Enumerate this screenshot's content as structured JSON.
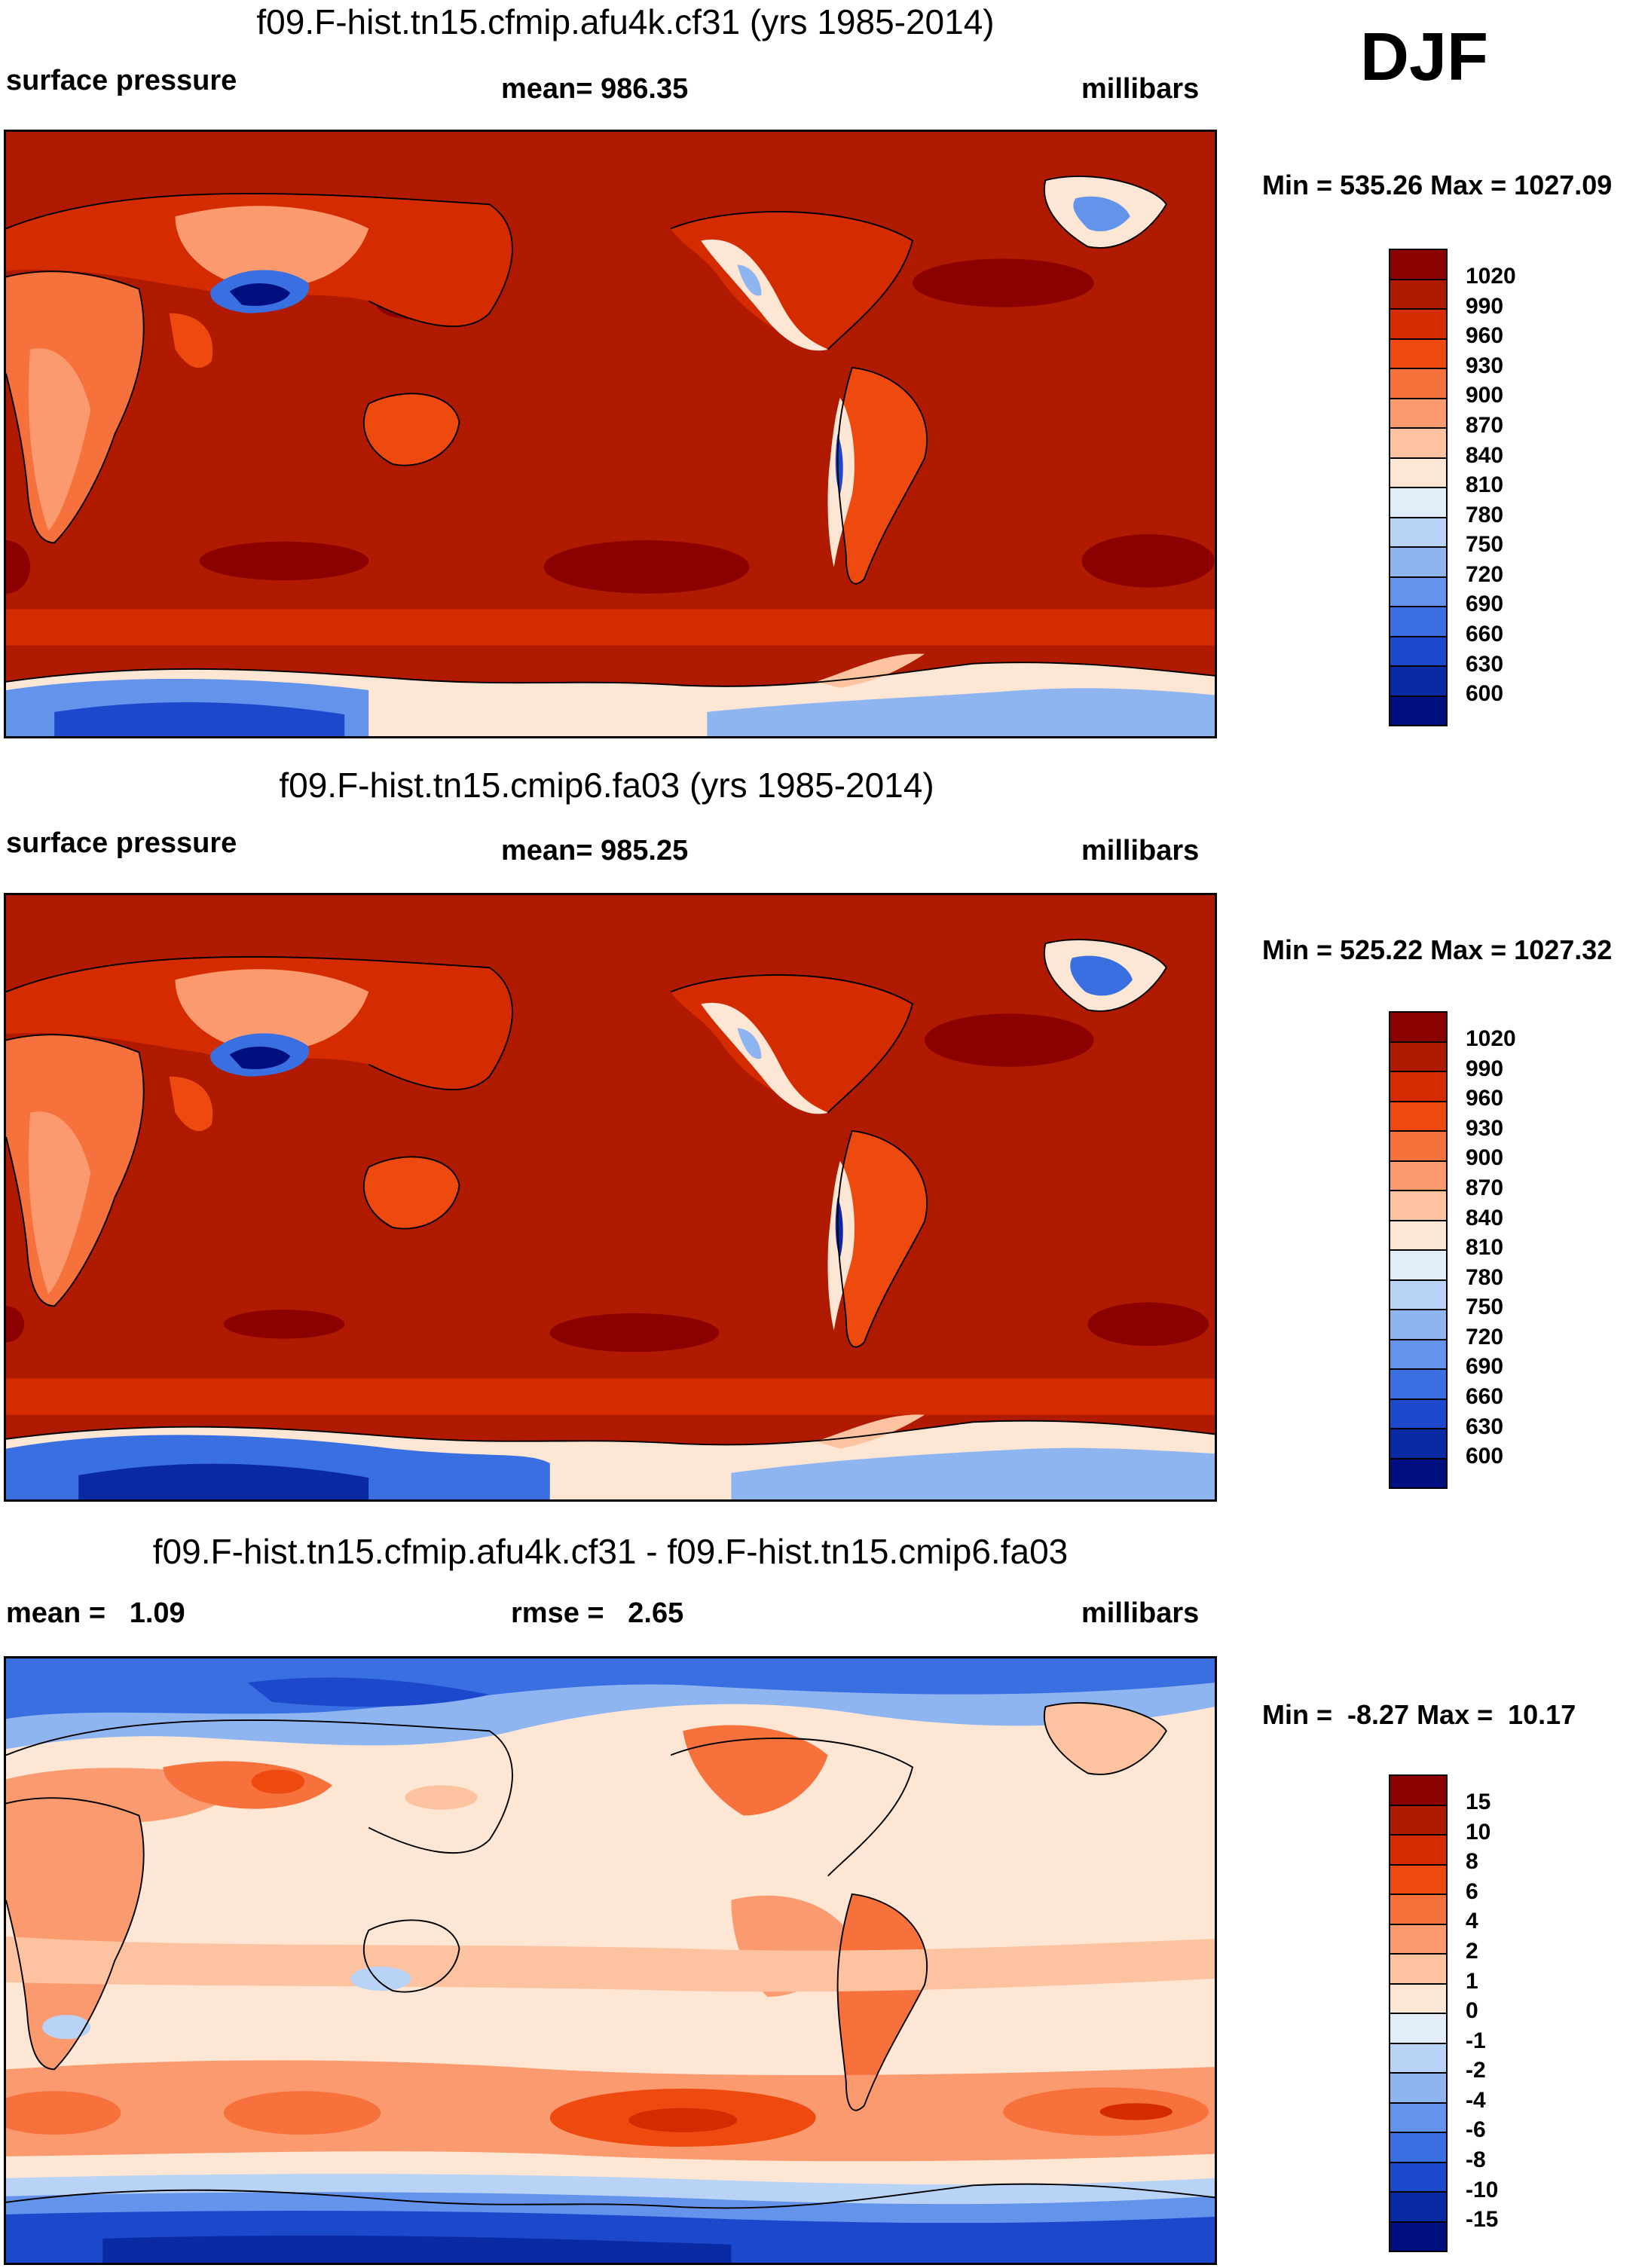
{
  "season": "DJF",
  "panels": [
    {
      "title": "f09.F-hist.tn15.cfmip.afu4k.cf31 (yrs 1985-2014)",
      "left_label": "surface pressure",
      "center_label": "mean= 986.35",
      "units": "millibars",
      "minmax": "Min = 535.26 Max = 1027.09",
      "map_kind": "abs"
    },
    {
      "title": "f09.F-hist.tn15.cmip6.fa03 (yrs 1985-2014)",
      "left_label": "surface pressure",
      "center_label": "mean= 985.25",
      "units": "millibars",
      "minmax": "Min = 525.22 Max = 1027.32",
      "map_kind": "abs"
    },
    {
      "title": "f09.F-hist.tn15.cfmip.afu4k.cf31 - f09.F-hist.tn15.cmip6.fa03",
      "left_label": "mean =   1.09",
      "center_label": "rmse =   2.65",
      "units": "millibars",
      "minmax": "Min =  -8.27 Max =  10.17",
      "map_kind": "diff"
    }
  ],
  "colorbars": {
    "abs": {
      "levels": [
        "1020",
        "990",
        "960",
        "930",
        "900",
        "870",
        "840",
        "810",
        "780",
        "750",
        "720",
        "690",
        "660",
        "630",
        "600"
      ],
      "colors": [
        "#8b0000",
        "#b01a00",
        "#d42c00",
        "#ee4a10",
        "#f6713c",
        "#fb9a6e",
        "#fdc29f",
        "#fde6d4",
        "#e2edfa",
        "#b9d3f6",
        "#8fb5f1",
        "#6393ea",
        "#3a6fe2",
        "#1c49cc",
        "#0a2aa4",
        "#000f80"
      ]
    },
    "diff": {
      "levels": [
        "15",
        "10",
        "8",
        "6",
        "4",
        "2",
        "1",
        "0",
        "-1",
        "-2",
        "-4",
        "-6",
        "-8",
        "-10",
        "-15"
      ],
      "colors": [
        "#8b0000",
        "#b01a00",
        "#d42c00",
        "#ee4a10",
        "#f6713c",
        "#fb9a6e",
        "#fdc29f",
        "#fde6d4",
        "#e2edfa",
        "#b9d3f6",
        "#8fb5f1",
        "#6393ea",
        "#3a6fe2",
        "#1c49cc",
        "#0a2aa4",
        "#000f80"
      ]
    }
  }
}
